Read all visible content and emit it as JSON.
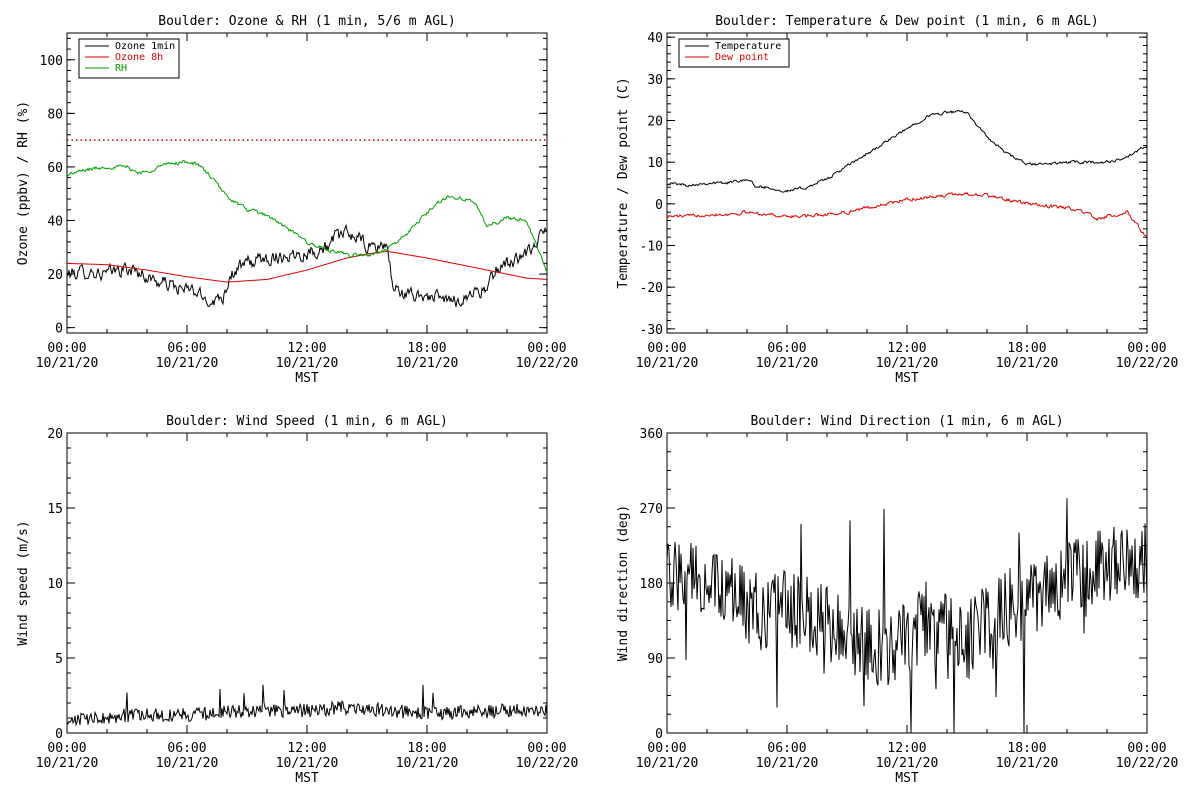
{
  "chart_data": [
    {
      "id": "ozone",
      "type": "line",
      "title": "Boulder: Ozone & RH (1 min, 5/6 m AGL)",
      "xlabel": "MST",
      "ylabel": "Ozone (ppbv) / RH (%)",
      "xlim": [
        0,
        24
      ],
      "ylim": [
        -2,
        110
      ],
      "yticks": [
        0,
        20,
        40,
        60,
        80,
        100
      ],
      "xticks": [
        {
          "time": "00:00",
          "date": "10/21/20"
        },
        {
          "time": "06:00",
          "date": "10/21/20"
        },
        {
          "time": "12:00",
          "date": "10/21/20"
        },
        {
          "time": "18:00",
          "date": "10/21/20"
        },
        {
          "time": "00:00",
          "date": "10/22/20"
        }
      ],
      "legend": {
        "position": "top-left",
        "entries": [
          {
            "label": "Ozone 1min",
            "color": "#000000"
          },
          {
            "label": "Ozone 8h",
            "color": "#e00000"
          },
          {
            "label": "RH",
            "color": "#00a000"
          }
        ]
      },
      "reference_lines": [
        {
          "y": 70,
          "color": "#e00000",
          "style": "dotted"
        }
      ],
      "series": [
        {
          "name": "Ozone 1min",
          "color": "#000000",
          "noise": 2.2,
          "x": [
            0,
            1,
            2,
            2.8,
            3.5,
            4.0,
            4.6,
            5.2,
            5.8,
            6.3,
            6.8,
            7.3,
            7.8,
            8.2,
            9.0,
            10,
            11,
            12,
            12.5,
            13,
            13.5,
            14,
            14.5,
            15,
            15.5,
            16,
            16.3,
            17,
            18,
            19,
            19.5,
            20,
            20.5,
            21,
            21.5,
            22,
            23,
            23.5,
            24
          ],
          "y": [
            20,
            21,
            20,
            22,
            21,
            19,
            17,
            16,
            14,
            14,
            11,
            10,
            12,
            20,
            24,
            26,
            27,
            28,
            29,
            30,
            34,
            35,
            34,
            30,
            30,
            31,
            15,
            12,
            12,
            10,
            10,
            12,
            14,
            14,
            22,
            24,
            27,
            32,
            37
          ]
        },
        {
          "name": "Ozone 8h",
          "color": "#e00000",
          "noise": 0,
          "x": [
            0,
            2,
            4,
            6,
            8,
            10,
            12,
            14,
            15,
            16,
            18,
            20,
            22,
            23,
            24
          ],
          "y": [
            24,
            23.5,
            21.5,
            19,
            17,
            18,
            21.5,
            26,
            27.5,
            28.5,
            26,
            23,
            20,
            18.5,
            18
          ]
        },
        {
          "name": "RH",
          "color": "#00a000",
          "noise": 0.6,
          "x": [
            0,
            0.5,
            1,
            2,
            3,
            3.5,
            4,
            4.5,
            5,
            6,
            6.5,
            7,
            8,
            9,
            10,
            11,
            12,
            13,
            14,
            15,
            16,
            17,
            18,
            19,
            20,
            20.5,
            21,
            22,
            23,
            23.5,
            24
          ],
          "y": [
            57,
            58,
            59,
            60,
            60,
            58,
            58,
            60,
            61,
            62,
            61,
            58,
            49,
            44,
            42,
            37,
            32,
            29,
            27,
            27,
            29,
            35,
            43,
            49,
            48,
            45,
            38,
            41,
            40,
            30,
            21
          ]
        }
      ]
    },
    {
      "id": "temperature",
      "type": "line",
      "title": "Boulder: Temperature & Dew point (1 min, 6 m AGL)",
      "xlabel": "MST",
      "ylabel": "Temperature / Dew point (C)",
      "xlim": [
        0,
        24
      ],
      "ylim": [
        -31,
        41
      ],
      "yticks": [
        -30,
        -20,
        -10,
        0,
        10,
        20,
        30,
        40
      ],
      "xticks": [
        {
          "time": "00:00",
          "date": "10/21/20"
        },
        {
          "time": "06:00",
          "date": "10/21/20"
        },
        {
          "time": "12:00",
          "date": "10/21/20"
        },
        {
          "time": "18:00",
          "date": "10/21/20"
        },
        {
          "time": "00:00",
          "date": "10/22/20"
        }
      ],
      "legend": {
        "position": "top-left",
        "entries": [
          {
            "label": "Temperature",
            "color": "#000000"
          },
          {
            "label": "Dew point",
            "color": "#e00000"
          }
        ]
      },
      "reference_lines": [],
      "series": [
        {
          "name": "Temperature",
          "color": "#000000",
          "noise": 0.3,
          "x": [
            0,
            1,
            2,
            3,
            4,
            4.5,
            5,
            6,
            7,
            8,
            9,
            10,
            11,
            12,
            13,
            14,
            15,
            16,
            17,
            18,
            19,
            20,
            21,
            22,
            23,
            24
          ],
          "y": [
            5,
            4.5,
            5,
            5,
            6,
            4,
            4,
            3,
            4,
            6,
            9,
            12,
            15,
            18,
            21,
            22,
            22,
            16,
            12,
            9.5,
            9.5,
            10,
            10,
            10,
            11,
            14
          ]
        },
        {
          "name": "Dew point",
          "color": "#e00000",
          "noise": 0.35,
          "x": [
            0,
            1,
            2,
            3,
            4,
            5,
            6,
            7,
            8,
            9,
            10,
            11,
            12,
            13,
            14,
            15,
            16,
            17,
            18,
            19,
            20,
            21,
            21.5,
            22,
            22.5,
            23,
            23.5,
            24
          ],
          "y": [
            -3,
            -3,
            -2.5,
            -2.5,
            -2,
            -2.5,
            -3,
            -3,
            -2.5,
            -2,
            -1,
            0,
            1,
            1.5,
            2,
            2.5,
            2,
            1,
            0,
            -0.5,
            -1,
            -2,
            -4,
            -3,
            -3,
            -2,
            -5,
            -8
          ]
        }
      ]
    },
    {
      "id": "windspeed",
      "type": "line",
      "title": "Boulder: Wind Speed (1 min, 6 m AGL)",
      "xlabel": "MST",
      "ylabel": "Wind speed (m/s)",
      "xlim": [
        0,
        24
      ],
      "ylim": [
        0,
        20
      ],
      "yticks": [
        0,
        5,
        10,
        15,
        20
      ],
      "xticks": [
        {
          "time": "00:00",
          "date": "10/21/20"
        },
        {
          "time": "06:00",
          "date": "10/21/20"
        },
        {
          "time": "12:00",
          "date": "10/21/20"
        },
        {
          "time": "18:00",
          "date": "10/21/20"
        },
        {
          "time": "00:00",
          "date": "10/22/20"
        }
      ],
      "legend": null,
      "reference_lines": [],
      "series": [
        {
          "name": "",
          "color": "#000000",
          "noise": 0.45,
          "x": [
            0,
            2,
            4,
            6,
            8,
            10,
            12,
            14,
            16,
            18,
            20,
            22,
            24
          ],
          "y": [
            0.8,
            1.0,
            1.2,
            1.2,
            1.4,
            1.5,
            1.5,
            1.7,
            1.5,
            1.3,
            1.4,
            1.5,
            1.5
          ]
        }
      ]
    },
    {
      "id": "winddir",
      "type": "line",
      "title": "Boulder: Wind Direction (1 min, 6 m AGL)",
      "xlabel": "MST",
      "ylabel": "Wind direction (deg)",
      "xlim": [
        0,
        24
      ],
      "ylim": [
        0,
        360
      ],
      "yticks": [
        0,
        90,
        180,
        270,
        360
      ],
      "xticks": [
        {
          "time": "00:00",
          "date": "10/21/20"
        },
        {
          "time": "06:00",
          "date": "10/21/20"
        },
        {
          "time": "12:00",
          "date": "10/21/20"
        },
        {
          "time": "18:00",
          "date": "10/21/20"
        },
        {
          "time": "00:00",
          "date": "10/22/20"
        }
      ],
      "legend": null,
      "reference_lines": [],
      "series": [
        {
          "name": "",
          "color": "#000000",
          "noise": 48,
          "x": [
            0,
            1,
            2,
            3,
            4,
            5,
            6,
            7,
            8,
            9,
            10,
            11,
            12,
            13,
            14,
            15,
            16,
            17,
            18,
            19,
            20,
            21,
            22,
            23,
            24
          ],
          "y": [
            180,
            185,
            175,
            170,
            150,
            140,
            150,
            140,
            130,
            120,
            110,
            100,
            110,
            130,
            120,
            110,
            130,
            150,
            160,
            170,
            180,
            195,
            200,
            205,
            210
          ]
        }
      ]
    }
  ]
}
